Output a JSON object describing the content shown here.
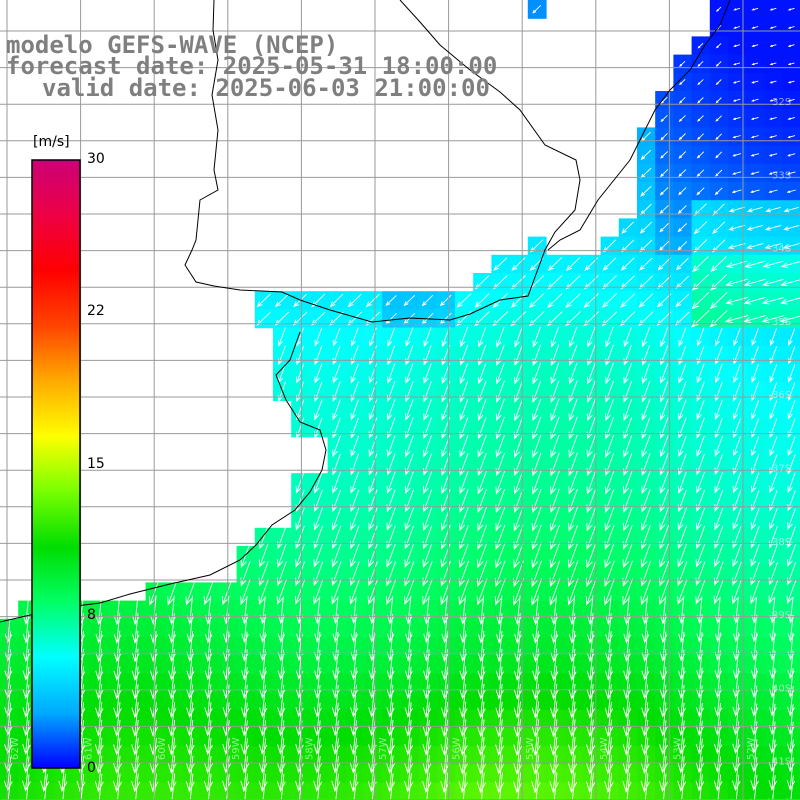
{
  "title": {
    "line1": "modelo GEFS-WAVE (NCEP)",
    "line2": "forecast date: 2025-05-31 18:00:00",
    "line3": "valid date: 2025-06-03 21:00:00"
  },
  "colorbar": {
    "unit": "[m/s]",
    "ticks": [
      "30",
      "22",
      "15",
      "8",
      "0"
    ],
    "tick_values": [
      30,
      22,
      15,
      8,
      0
    ],
    "range": [
      0,
      30
    ],
    "colors": [
      "#0000ff",
      "#00aaff",
      "#00ffff",
      "#00ff66",
      "#00dd00",
      "#77ff00",
      "#ffff00",
      "#ffaa00",
      "#ff4400",
      "#ff0000",
      "#ee0044",
      "#cc0077"
    ]
  },
  "grid": {
    "lat_labels": [
      "32S",
      "33S",
      "34S",
      "35S",
      "36S",
      "37S",
      "38S",
      "39S",
      "40S",
      "41S"
    ],
    "lon_labels": [
      "62W",
      "61W",
      "60W",
      "59W",
      "58W",
      "57W",
      "56W",
      "55W",
      "54W",
      "53W",
      "52W"
    ]
  },
  "colors": {
    "grid": "#999999",
    "land": "#ffffff",
    "coast": "#000000",
    "arrows": "#ffffff",
    "title": "#7f7f7f"
  }
}
